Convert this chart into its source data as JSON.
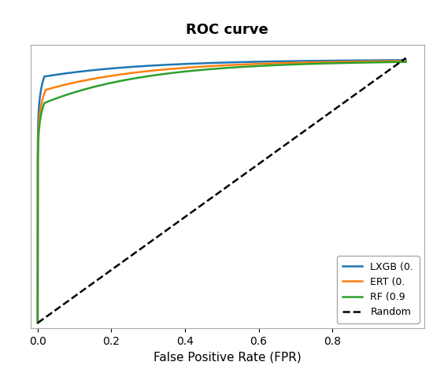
{
  "title": "ROC curve",
  "xlabel": "False Positive Rate (FPR)",
  "xlim": [
    -0.02,
    1.05
  ],
  "ylim": [
    -0.02,
    1.05
  ],
  "title_fontsize": 13,
  "label_fontsize": 11,
  "tick_fontsize": 10,
  "curves": [
    {
      "label": "LXGB (0.",
      "color": "#1f77b4",
      "rise_y": 0.93,
      "rise_x": 0.018,
      "mid_y": 0.975,
      "mid_x": 0.08,
      "end_y": 0.994
    },
    {
      "label": "ERT (0.",
      "color": "#ff7f0e",
      "rise_y": 0.88,
      "rise_x": 0.022,
      "mid_y": 0.965,
      "mid_x": 0.1,
      "end_y": 0.992
    },
    {
      "label": "RF (0.9",
      "color": "#2ca02c",
      "rise_y": 0.83,
      "rise_x": 0.018,
      "mid_y": 0.955,
      "mid_x": 0.12,
      "end_y": 0.99
    }
  ],
  "random_label": "Random",
  "random_color": "#000000",
  "legend_loc": "lower right",
  "background_color": "#ffffff",
  "xticks": [
    0.0,
    0.2,
    0.4,
    0.6,
    0.8
  ],
  "figure_width": 5.5,
  "figure_height": 4.74
}
